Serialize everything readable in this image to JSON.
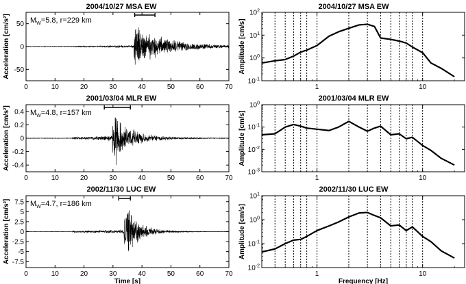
{
  "chart_data": [
    {
      "type": "line",
      "title": "2004/10/27 MSA EW",
      "annotation": {
        "mag_sub": "W",
        "rest": "=5.8, r=229 km"
      },
      "xlabel": "",
      "ylabel": "Acceleration [cm/s²]",
      "xlim": [
        0,
        70
      ],
      "ylim": [
        -75,
        75
      ],
      "xticks": [
        0,
        10,
        20,
        30,
        40,
        50,
        60,
        70
      ],
      "yticks": [
        -50,
        0,
        50
      ],
      "window": [
        37.5,
        44.5
      ],
      "signal": {
        "noise_start": 0,
        "onset": 16,
        "peak_time": 38.5,
        "peak_amp": 62,
        "coda_decay": 12,
        "noise_amp": 0.8,
        "pre_amp": 2.5,
        "seed": 3
      }
    },
    {
      "type": "line",
      "title": "2004/10/27 MSA EW",
      "xlabel": "",
      "ylabel": "Amplitude [cm/s]",
      "xscale": "log",
      "yscale": "log",
      "xlim": [
        0.3,
        25
      ],
      "ylim": [
        0.1,
        100
      ],
      "xticks": [
        1,
        10
      ],
      "yticks": [
        0.1,
        1,
        10,
        100
      ],
      "ytick_labels": [
        {
          "base": "10",
          "exp": "-1"
        },
        {
          "base": "10",
          "exp": "0"
        },
        {
          "base": "10",
          "exp": "1"
        },
        {
          "base": "10",
          "exp": "2"
        }
      ],
      "vlines": [
        0.4,
        0.5,
        0.6,
        0.7,
        0.8,
        1.0,
        2.0,
        3.0,
        4.0,
        5.0,
        6.0,
        7.0,
        8.0,
        10.0
      ],
      "x": [
        0.3,
        0.4,
        0.5,
        0.6,
        0.7,
        0.8,
        1.0,
        1.3,
        1.6,
        2.0,
        2.5,
        3.0,
        3.5,
        4.0,
        5.0,
        6.0,
        7.0,
        8.0,
        10.0,
        12.0,
        15.0,
        20.0
      ],
      "y": [
        0.6,
        0.75,
        0.85,
        1.2,
        1.8,
        2.2,
        3.5,
        9.0,
        14,
        20,
        28,
        30,
        24,
        7.5,
        6.5,
        5.5,
        4.5,
        3.0,
        1.7,
        0.6,
        0.35,
        0.15
      ]
    },
    {
      "type": "line",
      "title": "2001/03/04 MLR EW",
      "annotation": {
        "mag_sub": "W",
        "rest": "=4.8, r=157 km"
      },
      "xlabel": "",
      "ylabel": "Acceleration [cm/s²]",
      "xlim": [
        0,
        70
      ],
      "ylim": [
        -0.5,
        0.5
      ],
      "xticks": [
        0,
        10,
        20,
        30,
        40,
        50,
        60,
        70
      ],
      "yticks": [
        -0.4,
        -0.2,
        0,
        0.2,
        0.4
      ],
      "window": [
        27,
        36
      ],
      "signal": {
        "noise_start": 0,
        "onset": 16,
        "peak_time": 31,
        "peak_amp": 0.42,
        "coda_decay": 7,
        "noise_amp": 0.004,
        "pre_amp": 0.035,
        "seed": 11
      }
    },
    {
      "type": "line",
      "title": "2001/03/04 MLR EW",
      "xlabel": "",
      "ylabel": "Amplitude [cm/s]",
      "xscale": "log",
      "yscale": "log",
      "xlim": [
        0.3,
        25
      ],
      "ylim": [
        0.001,
        1
      ],
      "xticks": [
        1,
        10
      ],
      "yticks": [
        0.001,
        0.01,
        0.1,
        1
      ],
      "ytick_labels": [
        {
          "base": "10",
          "exp": "-3"
        },
        {
          "base": "10",
          "exp": "-2"
        },
        {
          "base": "10",
          "exp": "-1"
        },
        {
          "base": "10",
          "exp": "0"
        }
      ],
      "vlines": [
        0.4,
        0.5,
        0.6,
        0.7,
        0.8,
        1.0,
        2.0,
        3.0,
        4.0,
        5.0,
        6.0,
        7.0,
        8.0,
        10.0
      ],
      "x": [
        0.3,
        0.4,
        0.5,
        0.6,
        0.7,
        0.8,
        1.0,
        1.3,
        1.6,
        2.0,
        2.5,
        3.0,
        3.5,
        4.0,
        5.0,
        6.0,
        7.0,
        8.0,
        10.0,
        12.0,
        15.0,
        20.0
      ],
      "y": [
        0.045,
        0.05,
        0.1,
        0.13,
        0.11,
        0.09,
        0.08,
        0.07,
        0.1,
        0.18,
        0.1,
        0.065,
        0.09,
        0.11,
        0.045,
        0.05,
        0.03,
        0.035,
        0.015,
        0.009,
        0.004,
        0.002
      ]
    },
    {
      "type": "line",
      "title": "2002/11/30 LUC EW",
      "annotation": {
        "mag_sub": "W",
        "rest": "=4.7, r=186 km"
      },
      "xlabel": "Time [s]",
      "ylabel": "Acceleration [cm/s²]",
      "xlim": [
        0,
        70
      ],
      "ylim": [
        -9,
        9
      ],
      "xticks": [
        0,
        10,
        20,
        30,
        40,
        50,
        60,
        70
      ],
      "yticks": [
        -7.5,
        -5,
        -2.5,
        0,
        2.5,
        5,
        7.5
      ],
      "window": [
        32,
        36
      ],
      "signal": {
        "noise_start": 0,
        "onset": 16,
        "peak_time": 35,
        "peak_amp": 7.2,
        "coda_decay": 5,
        "noise_amp": 0.05,
        "pre_amp": 0.4,
        "seed": 27
      }
    },
    {
      "type": "line",
      "title": "2002/11/30 LUC EW",
      "xlabel": "Frequency [Hz]",
      "ylabel": "Amplitude [cm/s]",
      "xscale": "log",
      "yscale": "log",
      "xlim": [
        0.3,
        25
      ],
      "ylim": [
        0.01,
        10
      ],
      "xticks": [
        1,
        10
      ],
      "yticks": [
        0.01,
        0.1,
        1,
        10
      ],
      "ytick_labels": [
        {
          "base": "10",
          "exp": "-2"
        },
        {
          "base": "10",
          "exp": "-1"
        },
        {
          "base": "10",
          "exp": "0"
        },
        {
          "base": "10",
          "exp": "1"
        }
      ],
      "vlines": [
        0.4,
        0.5,
        0.6,
        0.7,
        0.8,
        1.0,
        2.0,
        3.0,
        4.0,
        5.0,
        6.0,
        7.0,
        8.0,
        10.0
      ],
      "x": [
        0.3,
        0.4,
        0.5,
        0.6,
        0.7,
        0.8,
        1.0,
        1.3,
        1.6,
        2.0,
        2.5,
        3.0,
        3.5,
        4.0,
        5.0,
        6.0,
        7.0,
        8.0,
        10.0,
        12.0,
        15.0,
        20.0
      ],
      "y": [
        0.045,
        0.06,
        0.1,
        0.14,
        0.15,
        0.2,
        0.35,
        0.55,
        0.8,
        1.3,
        1.9,
        2.0,
        1.5,
        1.2,
        0.55,
        0.6,
        0.35,
        0.5,
        0.2,
        0.12,
        0.05,
        0.025
      ]
    }
  ]
}
